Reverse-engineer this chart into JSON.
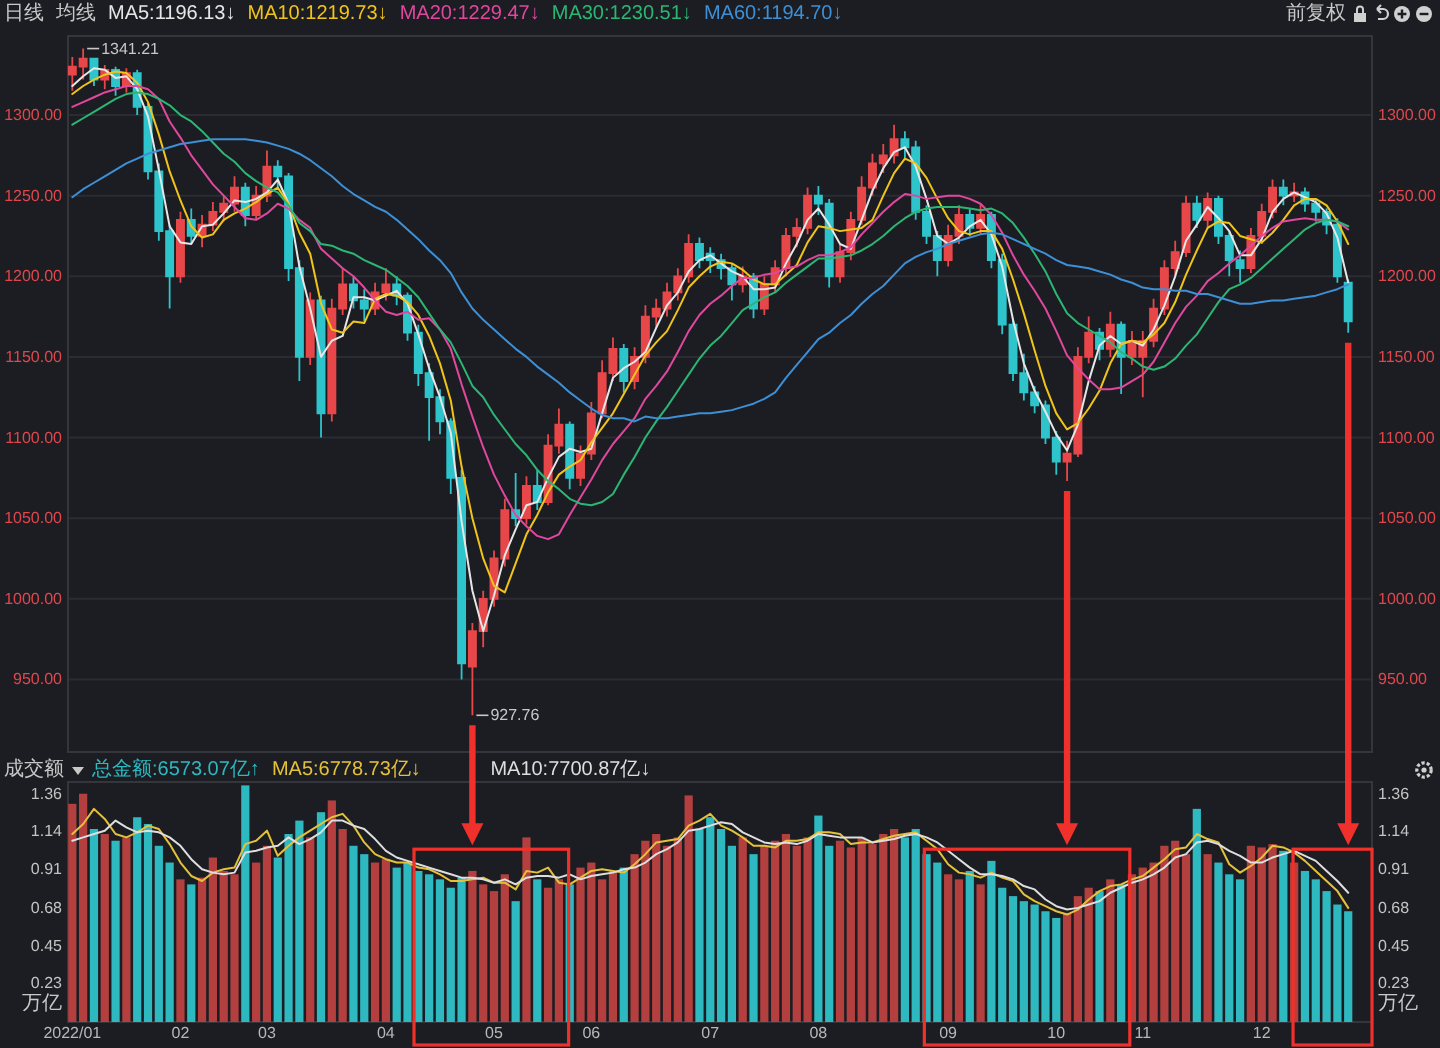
{
  "chart_data": [
    {
      "type": "candlestick",
      "title": "日线",
      "legend_title": "均线",
      "subtitle": "前复权",
      "legend": "top left",
      "grid": "y",
      "categories": [
        null,
        null,
        null,
        null,
        null,
        null,
        null,
        null,
        null,
        null,
        null,
        null,
        null,
        null,
        null,
        null,
        null,
        null,
        null,
        null,
        null,
        null,
        null,
        null,
        null,
        null,
        null,
        null,
        null,
        null,
        null,
        null,
        null,
        null,
        null,
        null,
        null,
        null,
        null,
        null,
        null,
        null,
        null,
        null,
        null,
        null,
        null,
        null,
        null,
        null,
        null,
        null,
        null,
        null,
        null,
        null,
        null,
        null,
        null,
        null,
        null,
        null,
        null,
        null,
        null,
        null,
        null,
        null,
        null,
        null,
        null,
        null,
        null,
        null,
        null,
        null,
        null,
        null,
        null,
        null,
        null,
        null,
        null,
        null,
        null,
        null,
        null,
        null,
        null,
        null,
        null,
        null,
        null,
        null,
        null,
        null,
        null,
        null,
        null,
        null,
        null,
        null,
        null,
        null,
        null,
        null,
        null,
        null,
        null,
        null,
        null,
        null,
        null,
        null,
        null,
        null,
        null,
        null,
        null
      ],
      "ylim": [
        905,
        1349
      ],
      "yticks": [
        {
          "value": 950,
          "label": "950.00"
        },
        {
          "value": 1000,
          "label": "1000.00"
        },
        {
          "value": 1050,
          "label": "1050.00"
        },
        {
          "value": 1100,
          "label": "1100.00"
        },
        {
          "value": 1150,
          "label": "1150.00"
        },
        {
          "value": 1200,
          "label": "1200.00"
        },
        {
          "value": 1250,
          "label": "1250.00"
        },
        {
          "value": 1300,
          "label": "1300.00"
        }
      ],
      "y2lim": [
        905,
        1349
      ],
      "y2ticks": [
        {
          "value": 950,
          "label": "950.00"
        },
        {
          "value": 1000,
          "label": "1000.00"
        },
        {
          "value": 1050,
          "label": "1050.00"
        },
        {
          "value": 1100,
          "label": "1100.00"
        },
        {
          "value": 1150,
          "label": "1150.00"
        },
        {
          "value": 1200,
          "label": "1200.00"
        },
        {
          "value": 1250,
          "label": "1250.00"
        },
        {
          "value": 1300,
          "label": "1300.00"
        }
      ],
      "ohlc": [
        [
          1325,
          1336,
          1315,
          1330
        ],
        [
          1330,
          1341.21,
          1322,
          1335
        ],
        [
          1335,
          1335,
          1318,
          1322
        ],
        [
          1322,
          1331,
          1316,
          1328
        ],
        [
          1328,
          1330,
          1312,
          1318
        ],
        [
          1318,
          1329,
          1314,
          1326
        ],
        [
          1326,
          1328,
          1300,
          1305
        ],
        [
          1305,
          1308,
          1260,
          1265
        ],
        [
          1265,
          1270,
          1222,
          1228
        ],
        [
          1228,
          1232,
          1180,
          1200
        ],
        [
          1200,
          1240,
          1196,
          1235
        ],
        [
          1235,
          1242,
          1220,
          1225
        ],
        [
          1225,
          1238,
          1218,
          1232
        ],
        [
          1232,
          1246,
          1228,
          1240
        ],
        [
          1240,
          1250,
          1234,
          1245
        ],
        [
          1245,
          1262,
          1240,
          1255
        ],
        [
          1255,
          1258,
          1231,
          1238
        ],
        [
          1238,
          1256,
          1235,
          1250
        ],
        [
          1250,
          1278,
          1246,
          1268
        ],
        [
          1268,
          1272,
          1255,
          1262
        ],
        [
          1262,
          1264,
          1197,
          1205
        ],
        [
          1205,
          1210,
          1135,
          1150
        ],
        [
          1150,
          1190,
          1145,
          1185
        ],
        [
          1185,
          1188,
          1100,
          1115
        ],
        [
          1115,
          1186,
          1110,
          1180
        ],
        [
          1180,
          1205,
          1176,
          1195
        ],
        [
          1195,
          1200,
          1180,
          1185
        ],
        [
          1185,
          1192,
          1172,
          1180
        ],
        [
          1180,
          1196,
          1176,
          1190
        ],
        [
          1190,
          1205,
          1185,
          1195
        ],
        [
          1195,
          1200,
          1182,
          1188
        ],
        [
          1188,
          1190,
          1160,
          1165
        ],
        [
          1165,
          1170,
          1132,
          1140
        ],
        [
          1140,
          1146,
          1098,
          1125
        ],
        [
          1125,
          1130,
          1102,
          1110
        ],
        [
          1110,
          1112,
          1065,
          1075
        ],
        [
          1075,
          1080,
          950,
          960
        ],
        [
          958,
          985,
          927.76,
          980
        ],
        [
          980,
          1005,
          970,
          1000
        ],
        [
          1000,
          1030,
          995,
          1025
        ],
        [
          1025,
          1062,
          1020,
          1055
        ],
        [
          1055,
          1078,
          1045,
          1050
        ],
        [
          1050,
          1076,
          1046,
          1070
        ],
        [
          1070,
          1080,
          1055,
          1060
        ],
        [
          1060,
          1102,
          1058,
          1095
        ],
        [
          1095,
          1118,
          1090,
          1108
        ],
        [
          1108,
          1110,
          1068,
          1075
        ],
        [
          1075,
          1095,
          1070,
          1090
        ],
        [
          1090,
          1122,
          1086,
          1115
        ],
        [
          1115,
          1148,
          1112,
          1140
        ],
        [
          1140,
          1162,
          1135,
          1155
        ],
        [
          1155,
          1158,
          1128,
          1135
        ],
        [
          1135,
          1156,
          1130,
          1150
        ],
        [
          1150,
          1182,
          1146,
          1175
        ],
        [
          1175,
          1186,
          1168,
          1180
        ],
        [
          1180,
          1196,
          1175,
          1190
        ],
        [
          1190,
          1205,
          1185,
          1200
        ],
        [
          1200,
          1226,
          1196,
          1220
        ],
        [
          1220,
          1224,
          1205,
          1210
        ],
        [
          1214,
          1218,
          1202,
          1210
        ],
        [
          1210,
          1214,
          1198,
          1205
        ],
        [
          1205,
          1208,
          1185,
          1195
        ],
        [
          1195,
          1206,
          1190,
          1200
        ],
        [
          1200,
          1202,
          1174,
          1180
        ],
        [
          1180,
          1200,
          1176,
          1195
        ],
        [
          1195,
          1210,
          1190,
          1205
        ],
        [
          1205,
          1230,
          1200,
          1225
        ],
        [
          1225,
          1236,
          1218,
          1230
        ],
        [
          1230,
          1255,
          1226,
          1250
        ],
        [
          1250,
          1256,
          1238,
          1245
        ],
        [
          1245,
          1248,
          1193,
          1200
        ],
        [
          1200,
          1220,
          1196,
          1215
        ],
        [
          1215,
          1240,
          1210,
          1235
        ],
        [
          1235,
          1262,
          1232,
          1255
        ],
        [
          1255,
          1276,
          1250,
          1270
        ],
        [
          1270,
          1282,
          1264,
          1275
        ],
        [
          1275,
          1294,
          1270,
          1285
        ],
        [
          1285,
          1290,
          1272,
          1280
        ],
        [
          1280,
          1284,
          1235,
          1240
        ],
        [
          1240,
          1244,
          1220,
          1225
        ],
        [
          1225,
          1228,
          1200,
          1210
        ],
        [
          1210,
          1232,
          1206,
          1225
        ],
        [
          1225,
          1244,
          1220,
          1238
        ],
        [
          1238,
          1242,
          1225,
          1230
        ],
        [
          1230,
          1245,
          1226,
          1238
        ],
        [
          1238,
          1240,
          1205,
          1210
        ],
        [
          1210,
          1214,
          1164,
          1170
        ],
        [
          1170,
          1174,
          1135,
          1140
        ],
        [
          1140,
          1152,
          1123,
          1128
        ],
        [
          1128,
          1132,
          1115,
          1120
        ],
        [
          1120,
          1123,
          1096,
          1100
        ],
        [
          1100,
          1104,
          1077,
          1085
        ],
        [
          1085,
          1098,
          1073,
          1090
        ],
        [
          1090,
          1156,
          1088,
          1150
        ],
        [
          1150,
          1175,
          1146,
          1165
        ],
        [
          1165,
          1168,
          1148,
          1155
        ],
        [
          1155,
          1178,
          1150,
          1170
        ],
        [
          1170,
          1172,
          1127,
          1150
        ],
        [
          1150,
          1166,
          1145,
          1160
        ],
        [
          1150,
          1166,
          1125,
          1160
        ],
        [
          1160,
          1186,
          1156,
          1180
        ],
        [
          1180,
          1210,
          1176,
          1205
        ],
        [
          1205,
          1222,
          1200,
          1215
        ],
        [
          1215,
          1250,
          1212,
          1245
        ],
        [
          1245,
          1250,
          1230,
          1235
        ],
        [
          1235,
          1252,
          1230,
          1248
        ],
        [
          1248,
          1250,
          1220,
          1225
        ],
        [
          1225,
          1228,
          1200,
          1210
        ],
        [
          1210,
          1216,
          1196,
          1205
        ],
        [
          1205,
          1230,
          1202,
          1225
        ],
        [
          1225,
          1245,
          1220,
          1240
        ],
        [
          1240,
          1260,
          1236,
          1255
        ],
        [
          1255,
          1260,
          1244,
          1250
        ],
        [
          1250,
          1258,
          1246,
          1252
        ],
        [
          1252,
          1255,
          1240,
          1245
        ],
        [
          1245,
          1248,
          1234,
          1240
        ],
        [
          1240,
          1242,
          1226,
          1232
        ],
        [
          1232,
          1236,
          1196,
          1200
        ],
        [
          1196,
          1198,
          1165,
          1172
        ]
      ],
      "colors": [
        "#e8474a",
        "#e8474a",
        "#2ec4cc",
        "#e8474a",
        "#2ec4cc",
        "#e8474a",
        "#2ec4cc",
        "#2ec4cc",
        "#2ec4cc",
        "#2ec4cc",
        "#e8474a",
        "#2ec4cc",
        "#e8474a",
        "#e8474a",
        "#e8474a",
        "#e8474a",
        "#2ec4cc",
        "#e8474a",
        "#e8474a",
        "#2ec4cc",
        "#2ec4cc",
        "#2ec4cc",
        "#e8474a",
        "#2ec4cc",
        "#e8474a",
        "#e8474a",
        "#2ec4cc",
        "#2ec4cc",
        "#e8474a",
        "#e8474a",
        "#2ec4cc",
        "#2ec4cc",
        "#2ec4cc",
        "#2ec4cc",
        "#2ec4cc",
        "#2ec4cc",
        "#2ec4cc",
        "#e8474a",
        "#e8474a",
        "#e8474a",
        "#e8474a",
        "#2ec4cc",
        "#e8474a",
        "#2ec4cc",
        "#e8474a",
        "#e8474a",
        "#2ec4cc",
        "#e8474a",
        "#e8474a",
        "#e8474a",
        "#e8474a",
        "#2ec4cc",
        "#e8474a",
        "#e8474a",
        "#e8474a",
        "#e8474a",
        "#e8474a",
        "#e8474a",
        "#2ec4cc",
        "#2ec4cc",
        "#2ec4cc",
        "#2ec4cc",
        "#e8474a",
        "#2ec4cc",
        "#e8474a",
        "#e8474a",
        "#e8474a",
        "#e8474a",
        "#e8474a",
        "#2ec4cc",
        "#2ec4cc",
        "#e8474a",
        "#e8474a",
        "#e8474a",
        "#e8474a",
        "#e8474a",
        "#e8474a",
        "#2ec4cc",
        "#2ec4cc",
        "#2ec4cc",
        "#2ec4cc",
        "#e8474a",
        "#e8474a",
        "#2ec4cc",
        "#e8474a",
        "#2ec4cc",
        "#2ec4cc",
        "#2ec4cc",
        "#2ec4cc",
        "#2ec4cc",
        "#2ec4cc",
        "#2ec4cc",
        "#e8474a",
        "#e8474a",
        "#e8474a",
        "#2ec4cc",
        "#e8474a",
        "#2ec4cc",
        "#e8474a",
        "#e8474a",
        "#e8474a",
        "#e8474a",
        "#e8474a",
        "#e8474a",
        "#2ec4cc",
        "#e8474a",
        "#2ec4cc",
        "#2ec4cc",
        "#2ec4cc",
        "#e8474a",
        "#e8474a",
        "#e8474a",
        "#2ec4cc",
        "#e8474a",
        "#2ec4cc",
        "#2ec4cc",
        "#2ec4cc",
        "#2ec4cc",
        "#2ec4cc"
      ],
      "series": [
        {
          "name": "MA5:1196.13↓",
          "type": "line",
          "color": "#e6e6e6",
          "values": [
            1318,
            1324,
            1329,
            1328,
            1323,
            1324,
            1316,
            1299,
            1266,
            1231,
            1221,
            1220,
            1231,
            1232,
            1239,
            1247,
            1246,
            1248,
            1252,
            1260,
            1245,
            1206,
            1180,
            1150,
            1160,
            1163,
            1187,
            1187,
            1185,
            1188,
            1191,
            1183,
            1164,
            1143,
            1125,
            1103,
            1048,
            1005,
            980,
            1002,
            1027,
            1043,
            1058,
            1060,
            1075,
            1088,
            1093,
            1091,
            1093,
            1115,
            1137,
            1143,
            1147,
            1153,
            1168,
            1182,
            1190,
            1203,
            1210,
            1213,
            1208,
            1203,
            1200,
            1192,
            1192,
            1193,
            1208,
            1220,
            1235,
            1242,
            1232,
            1220,
            1217,
            1235,
            1253,
            1267,
            1277,
            1280,
            1268,
            1248,
            1225,
            1220,
            1224,
            1231,
            1235,
            1226,
            1206,
            1173,
            1146,
            1129,
            1116,
            1102,
            1092,
            1108,
            1135,
            1157,
            1163,
            1158,
            1160,
            1157,
            1167,
            1182,
            1200,
            1222,
            1232,
            1243,
            1236,
            1228,
            1213,
            1213,
            1223,
            1240,
            1248,
            1252,
            1249,
            1246,
            1239,
            1224,
            1196
          ]
        },
        {
          "name": "MA10:1219.73↓",
          "type": "line",
          "color": "#f0c419",
          "values": [
            1313,
            1318,
            1322,
            1325,
            1327,
            1326,
            1320,
            1308,
            1288,
            1265,
            1247,
            1231,
            1224,
            1226,
            1235,
            1239,
            1242,
            1246,
            1251,
            1255,
            1245,
            1227,
            1214,
            1183,
            1167,
            1165,
            1172,
            1171,
            1186,
            1189,
            1188,
            1184,
            1176,
            1163,
            1146,
            1123,
            1082,
            1050,
            1025,
            1008,
            1004,
            1022,
            1040,
            1052,
            1066,
            1077,
            1082,
            1086,
            1097,
            1106,
            1115,
            1127,
            1139,
            1151,
            1159,
            1166,
            1179,
            1193,
            1200,
            1206,
            1209,
            1208,
            1204,
            1198,
            1195,
            1195,
            1201,
            1207,
            1221,
            1231,
            1230,
            1228,
            1229,
            1230,
            1235,
            1250,
            1264,
            1273,
            1270,
            1261,
            1248,
            1236,
            1228,
            1226,
            1228,
            1228,
            1217,
            1198,
            1177,
            1154,
            1132,
            1115,
            1105,
            1109,
            1118,
            1129,
            1146,
            1158,
            1160,
            1159,
            1164,
            1171,
            1184,
            1201,
            1216,
            1230,
            1234,
            1233,
            1225,
            1223,
            1221,
            1227,
            1235,
            1244,
            1248,
            1248,
            1244,
            1234,
            1220
          ]
        },
        {
          "name": "MA20:1229.47↓",
          "type": "line",
          "color": "#e0479e",
          "values": [
            1305,
            1308,
            1311,
            1314,
            1316,
            1318,
            1318,
            1316,
            1310,
            1296,
            1286,
            1275,
            1266,
            1257,
            1250,
            1243,
            1236,
            1235,
            1239,
            1245,
            1242,
            1235,
            1230,
            1217,
            1211,
            1205,
            1200,
            1193,
            1185,
            1178,
            1176,
            1178,
            1173,
            1174,
            1167,
            1155,
            1133,
            1113,
            1094,
            1077,
            1064,
            1052,
            1045,
            1039,
            1037,
            1040,
            1052,
            1063,
            1074,
            1086,
            1096,
            1104,
            1112,
            1124,
            1132,
            1141,
            1153,
            1166,
            1176,
            1183,
            1188,
            1194,
            1199,
            1199,
            1201,
            1202,
            1205,
            1206,
            1210,
            1213,
            1213,
            1215,
            1218,
            1226,
            1233,
            1240,
            1246,
            1251,
            1250,
            1248,
            1249,
            1250,
            1250,
            1248,
            1245,
            1238,
            1227,
            1213,
            1201,
            1191,
            1180,
            1166,
            1151,
            1143,
            1136,
            1130,
            1130,
            1131,
            1135,
            1139,
            1147,
            1159,
            1171,
            1181,
            1188,
            1197,
            1202,
            1208,
            1213,
            1219,
            1225,
            1230,
            1234,
            1235,
            1236,
            1235,
            1235,
            1234,
            1229
          ]
        },
        {
          "name": "MA30:1230.51↓",
          "type": "line",
          "color": "#2cb673",
          "values": [
            1294,
            1298,
            1302,
            1306,
            1310,
            1313,
            1314,
            1313,
            1310,
            1306,
            1300,
            1296,
            1290,
            1283,
            1276,
            1271,
            1264,
            1259,
            1255,
            1252,
            1244,
            1233,
            1228,
            1220,
            1219,
            1216,
            1214,
            1210,
            1207,
            1204,
            1199,
            1194,
            1187,
            1177,
            1167,
            1159,
            1146,
            1132,
            1125,
            1114,
            1105,
            1096,
            1089,
            1080,
            1073,
            1068,
            1062,
            1059,
            1058,
            1060,
            1065,
            1077,
            1088,
            1100,
            1110,
            1119,
            1129,
            1139,
            1149,
            1157,
            1163,
            1171,
            1179,
            1183,
            1187,
            1190,
            1196,
            1201,
            1206,
            1211,
            1211,
            1212,
            1213,
            1216,
            1220,
            1225,
            1231,
            1236,
            1240,
            1242,
            1243,
            1243,
            1243,
            1242,
            1241,
            1242,
            1239,
            1233,
            1224,
            1214,
            1203,
            1189,
            1177,
            1171,
            1167,
            1163,
            1159,
            1153,
            1149,
            1144,
            1142,
            1144,
            1149,
            1157,
            1164,
            1174,
            1184,
            1192,
            1195,
            1199,
            1205,
            1211,
            1217,
            1223,
            1229,
            1233,
            1235,
            1234,
            1231
          ]
        },
        {
          "name": "MA60:1194.70↓",
          "type": "line",
          "color": "#3d8fd6",
          "values": [
            1249,
            1254,
            1258,
            1262,
            1266,
            1270,
            1273,
            1276,
            1278,
            1280,
            1282,
            1283,
            1284,
            1285,
            1285,
            1285,
            1285,
            1284,
            1283,
            1281,
            1279,
            1276,
            1272,
            1267,
            1262,
            1256,
            1251,
            1247,
            1243,
            1240,
            1235,
            1229,
            1223,
            1216,
            1210,
            1202,
            1190,
            1180,
            1173,
            1167,
            1161,
            1155,
            1150,
            1144,
            1139,
            1134,
            1128,
            1123,
            1118,
            1114,
            1112,
            1112,
            1110,
            1113,
            1112,
            1112,
            1113,
            1114,
            1115,
            1115,
            1116,
            1117,
            1119,
            1121,
            1124,
            1128,
            1137,
            1145,
            1153,
            1161,
            1165,
            1171,
            1176,
            1183,
            1189,
            1194,
            1201,
            1208,
            1212,
            1215,
            1217,
            1220,
            1222,
            1224,
            1226,
            1227,
            1226,
            1223,
            1220,
            1217,
            1214,
            1210,
            1207,
            1206,
            1205,
            1203,
            1201,
            1198,
            1196,
            1193,
            1192,
            1192,
            1191,
            1191,
            1189,
            1189,
            1187,
            1185,
            1183,
            1183,
            1184,
            1185,
            1185,
            1186,
            1187,
            1188,
            1190,
            1192,
            1195
          ]
        }
      ],
      "annotations": [
        "1341.21",
        "927.76"
      ]
    },
    {
      "type": "bar",
      "title": "成交额",
      "legend": "top left",
      "categories": [
        "2022/01",
        null,
        null,
        null,
        null,
        null,
        null,
        null,
        null,
        null,
        "02",
        null,
        null,
        null,
        null,
        null,
        null,
        null,
        "03",
        null,
        null,
        null,
        null,
        null,
        null,
        null,
        null,
        null,
        null,
        "04",
        null,
        null,
        null,
        null,
        null,
        null,
        null,
        null,
        null,
        "05",
        null,
        null,
        null,
        null,
        null,
        null,
        null,
        null,
        "06",
        null,
        null,
        null,
        null,
        null,
        null,
        null,
        null,
        null,
        null,
        "07",
        null,
        null,
        null,
        null,
        null,
        null,
        null,
        null,
        null,
        "08",
        null,
        null,
        null,
        null,
        null,
        null,
        null,
        null,
        null,
        null,
        null,
        "09",
        null,
        null,
        null,
        null,
        null,
        null,
        null,
        null,
        null,
        "10",
        null,
        null,
        null,
        null,
        null,
        null,
        null,
        "11",
        null,
        null,
        null,
        null,
        null,
        null,
        null,
        null,
        null,
        null,
        "12",
        null,
        null,
        null,
        null,
        null,
        null,
        null,
        null
      ],
      "ylim": [
        0,
        1.43
      ],
      "yticks": [
        0.23,
        0.45,
        0.68,
        0.91,
        1.14,
        1.36
      ],
      "y2lim": [
        0,
        1.43
      ],
      "y2ticks": [
        0.23,
        0.45,
        0.68,
        0.91,
        1.14,
        1.36
      ],
      "ylabel": "万亿",
      "y2label": "万亿",
      "series": [
        {
          "name": "总金额:6573.07亿↑",
          "values": [
            1.3,
            1.36,
            1.15,
            1.12,
            1.08,
            1.1,
            1.22,
            1.18,
            1.05,
            0.95,
            0.85,
            0.82,
            0.86,
            0.98,
            0.9,
            0.88,
            1.41,
            0.95,
            1.05,
            0.98,
            1.12,
            1.2,
            1.1,
            1.25,
            1.32,
            1.15,
            1.05,
            1.0,
            0.95,
            0.97,
            0.92,
            0.95,
            0.9,
            0.88,
            0.85,
            0.8,
            0.86,
            0.9,
            0.82,
            0.78,
            0.88,
            0.72,
            1.1,
            0.85,
            0.8,
            0.85,
            0.82,
            0.92,
            0.95,
            0.85,
            0.9,
            0.92,
            1.0,
            1.08,
            1.12,
            1.05,
            1.1,
            1.35,
            1.15,
            1.22,
            1.15,
            1.05,
            1.1,
            1.0,
            1.05,
            1.08,
            1.12,
            1.05,
            1.1,
            1.23,
            1.05,
            1.08,
            1.04,
            1.1,
            1.06,
            1.12,
            1.15,
            1.1,
            1.15,
            1.0,
            0.95,
            0.88,
            0.85,
            0.9,
            0.82,
            0.96,
            0.8,
            0.75,
            0.72,
            0.7,
            0.66,
            0.62,
            0.65,
            0.75,
            0.8,
            0.78,
            0.85,
            0.82,
            0.88,
            0.92,
            0.95,
            1.05,
            1.08,
            1.0,
            1.27,
            1.0,
            0.95,
            0.88,
            0.85,
            1.05,
            1.04,
            1.06,
            1.02,
            0.95,
            0.9,
            0.85,
            0.78,
            0.7,
            0.66
          ],
          "colors": [
            "#b3403f",
            "#b3403f",
            "#2eb8c0",
            "#b3403f",
            "#2eb8c0",
            "#b3403f",
            "#2eb8c0",
            "#2eb8c0",
            "#2eb8c0",
            "#2eb8c0",
            "#b3403f",
            "#2eb8c0",
            "#b3403f",
            "#b3403f",
            "#b3403f",
            "#b3403f",
            "#2eb8c0",
            "#b3403f",
            "#b3403f",
            "#2eb8c0",
            "#2eb8c0",
            "#2eb8c0",
            "#b3403f",
            "#2eb8c0",
            "#b3403f",
            "#b3403f",
            "#2eb8c0",
            "#2eb8c0",
            "#b3403f",
            "#b3403f",
            "#2eb8c0",
            "#2eb8c0",
            "#2eb8c0",
            "#2eb8c0",
            "#2eb8c0",
            "#2eb8c0",
            "#2eb8c0",
            "#b3403f",
            "#b3403f",
            "#b3403f",
            "#b3403f",
            "#2eb8c0",
            "#b3403f",
            "#2eb8c0",
            "#b3403f",
            "#b3403f",
            "#2eb8c0",
            "#b3403f",
            "#b3403f",
            "#b3403f",
            "#b3403f",
            "#2eb8c0",
            "#b3403f",
            "#b3403f",
            "#b3403f",
            "#b3403f",
            "#b3403f",
            "#b3403f",
            "#2eb8c0",
            "#2eb8c0",
            "#2eb8c0",
            "#2eb8c0",
            "#b3403f",
            "#2eb8c0",
            "#b3403f",
            "#b3403f",
            "#b3403f",
            "#b3403f",
            "#b3403f",
            "#2eb8c0",
            "#2eb8c0",
            "#b3403f",
            "#b3403f",
            "#b3403f",
            "#b3403f",
            "#b3403f",
            "#b3403f",
            "#2eb8c0",
            "#2eb8c0",
            "#2eb8c0",
            "#2eb8c0",
            "#b3403f",
            "#b3403f",
            "#2eb8c0",
            "#b3403f",
            "#2eb8c0",
            "#2eb8c0",
            "#2eb8c0",
            "#2eb8c0",
            "#2eb8c0",
            "#2eb8c0",
            "#2eb8c0",
            "#b3403f",
            "#b3403f",
            "#b3403f",
            "#2eb8c0",
            "#b3403f",
            "#2eb8c0",
            "#b3403f",
            "#b3403f",
            "#b3403f",
            "#b3403f",
            "#b3403f",
            "#b3403f",
            "#2eb8c0",
            "#b3403f",
            "#2eb8c0",
            "#2eb8c0",
            "#2eb8c0",
            "#b3403f",
            "#b3403f",
            "#b3403f",
            "#2eb8c0",
            "#b3403f",
            "#2eb8c0",
            "#2eb8c0",
            "#2eb8c0",
            "#2eb8c0",
            "#2eb8c0"
          ]
        },
        {
          "name": "MA5:6778.73亿↓",
          "type": "line",
          "color": "#e3c23a",
          "values": [
            1.12,
            1.18,
            1.27,
            1.21,
            1.12,
            1.1,
            1.13,
            1.17,
            1.15,
            1.06,
            0.95,
            0.87,
            0.84,
            0.89,
            0.91,
            0.92,
            1.06,
            1.08,
            1.14,
            0.99,
            1.05,
            1.1,
            1.14,
            1.18,
            1.22,
            1.24,
            1.17,
            1.07,
            1.0,
            0.97,
            0.95,
            0.95,
            0.92,
            0.91,
            0.88,
            0.84,
            0.84,
            0.85,
            0.86,
            0.83,
            0.83,
            0.79,
            0.9,
            0.89,
            0.92,
            0.83,
            0.82,
            0.86,
            0.9,
            0.91,
            0.9,
            0.89,
            0.94,
            1.0,
            1.07,
            1.08,
            1.09,
            1.17,
            1.2,
            1.24,
            1.17,
            1.14,
            1.1,
            1.05,
            1.05,
            1.04,
            1.08,
            1.08,
            1.09,
            1.13,
            1.13,
            1.12,
            1.06,
            1.07,
            1.07,
            1.09,
            1.11,
            1.12,
            1.13,
            1.08,
            1.03,
            0.94,
            0.89,
            0.88,
            0.86,
            0.89,
            0.86,
            0.84,
            0.76,
            0.72,
            0.69,
            0.66,
            0.64,
            0.67,
            0.73,
            0.78,
            0.81,
            0.82,
            0.85,
            0.87,
            0.92,
            0.97,
            1.03,
            1.04,
            1.12,
            1.09,
            1.07,
            0.94,
            0.89,
            0.93,
            0.98,
            1.05,
            1.04,
            1.01,
            0.96,
            0.9,
            0.84,
            0.78,
            0.68
          ]
        },
        {
          "name": "MA10:7700.87亿↓",
          "type": "line",
          "color": "#dedede",
          "values": [
            1.08,
            1.1,
            1.12,
            1.14,
            1.2,
            1.16,
            1.13,
            1.14,
            1.13,
            1.1,
            1.05,
            0.97,
            0.91,
            0.89,
            0.88,
            0.89,
            1.01,
            1.02,
            1.04,
            1.05,
            1.1,
            1.06,
            1.09,
            1.13,
            1.2,
            1.2,
            1.17,
            1.15,
            1.09,
            1.02,
            0.98,
            0.96,
            0.94,
            0.92,
            0.9,
            0.88,
            0.86,
            0.86,
            0.85,
            0.83,
            0.85,
            0.82,
            0.86,
            0.87,
            0.87,
            0.86,
            0.88,
            0.85,
            0.87,
            0.88,
            0.89,
            0.91,
            0.92,
            0.95,
            1.0,
            1.03,
            1.07,
            1.14,
            1.15,
            1.17,
            1.19,
            1.18,
            1.13,
            1.1,
            1.07,
            1.06,
            1.07,
            1.06,
            1.08,
            1.12,
            1.11,
            1.1,
            1.1,
            1.1,
            1.07,
            1.08,
            1.09,
            1.11,
            1.12,
            1.1,
            1.07,
            1.02,
            0.97,
            0.92,
            0.88,
            0.88,
            0.87,
            0.85,
            0.81,
            0.79,
            0.73,
            0.69,
            0.67,
            0.68,
            0.7,
            0.72,
            0.77,
            0.8,
            0.83,
            0.85,
            0.88,
            0.92,
            0.98,
            1.0,
            1.07,
            1.08,
            1.06,
            1.02,
            0.99,
            0.95,
            0.95,
            0.98,
            1.0,
            1.02,
            0.99,
            0.96,
            0.9,
            0.84,
            0.77
          ]
        }
      ]
    }
  ]
}
